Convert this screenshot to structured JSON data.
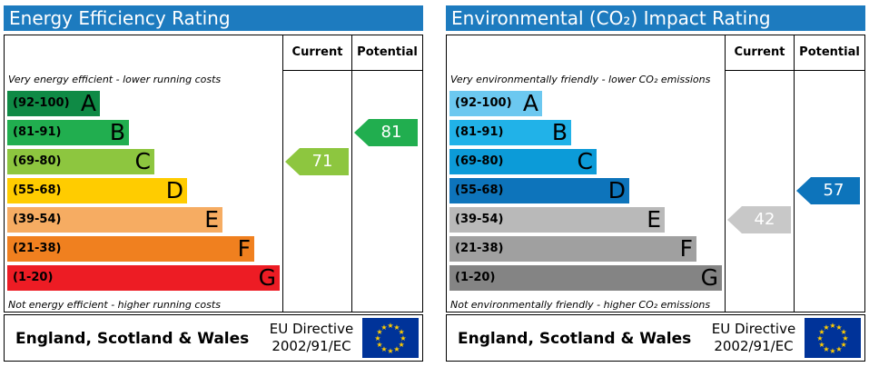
{
  "chart_data": [
    {
      "type": "bar",
      "title": "Energy Efficiency Rating",
      "columns": [
        "Current",
        "Potential"
      ],
      "top_note": "Very energy efficient - lower running costs",
      "bottom_note": "Not energy efficient - higher running costs",
      "bands": [
        {
          "range": "(92-100)",
          "letter": "A",
          "color": "#0f8a45"
        },
        {
          "range": "(81-91)",
          "letter": "B",
          "color": "#21ae4f"
        },
        {
          "range": "(69-80)",
          "letter": "C",
          "color": "#8dc63f"
        },
        {
          "range": "(55-68)",
          "letter": "D",
          "color": "#ffcc00"
        },
        {
          "range": "(39-54)",
          "letter": "E",
          "color": "#f6ac62"
        },
        {
          "range": "(21-38)",
          "letter": "F",
          "color": "#f0801f"
        },
        {
          "range": "(1-20)",
          "letter": "G",
          "color": "#ed1c24"
        }
      ],
      "current": {
        "value": "71",
        "band": "C",
        "color": "#8dc63f"
      },
      "potential": {
        "value": "81",
        "band": "B",
        "color": "#21ae4f"
      }
    },
    {
      "type": "bar",
      "title": "Environmental (CO₂) Impact Rating",
      "columns": [
        "Current",
        "Potential"
      ],
      "top_note": "Very environmentally friendly - lower CO₂ emissions",
      "bottom_note": "Not environmentally friendly - higher CO₂ emissions",
      "bands": [
        {
          "range": "(92-100)",
          "letter": "A",
          "color": "#6cc8f0"
        },
        {
          "range": "(81-91)",
          "letter": "B",
          "color": "#21b2e8"
        },
        {
          "range": "(69-80)",
          "letter": "C",
          "color": "#0c9bd8"
        },
        {
          "range": "(55-68)",
          "letter": "D",
          "color": "#0d74bb"
        },
        {
          "range": "(39-54)",
          "letter": "E",
          "color": "#b9b9b9"
        },
        {
          "range": "(21-38)",
          "letter": "F",
          "color": "#a0a0a0"
        },
        {
          "range": "(1-20)",
          "letter": "G",
          "color": "#848484"
        }
      ],
      "current": {
        "value": "42",
        "band": "E",
        "color": "#c8c8c8"
      },
      "potential": {
        "value": "57",
        "band": "D",
        "color": "#0d74bb"
      }
    }
  ],
  "footer": {
    "region": "England, Scotland & Wales",
    "directive_line1": "EU Directive",
    "directive_line2": "2002/91/EC"
  }
}
